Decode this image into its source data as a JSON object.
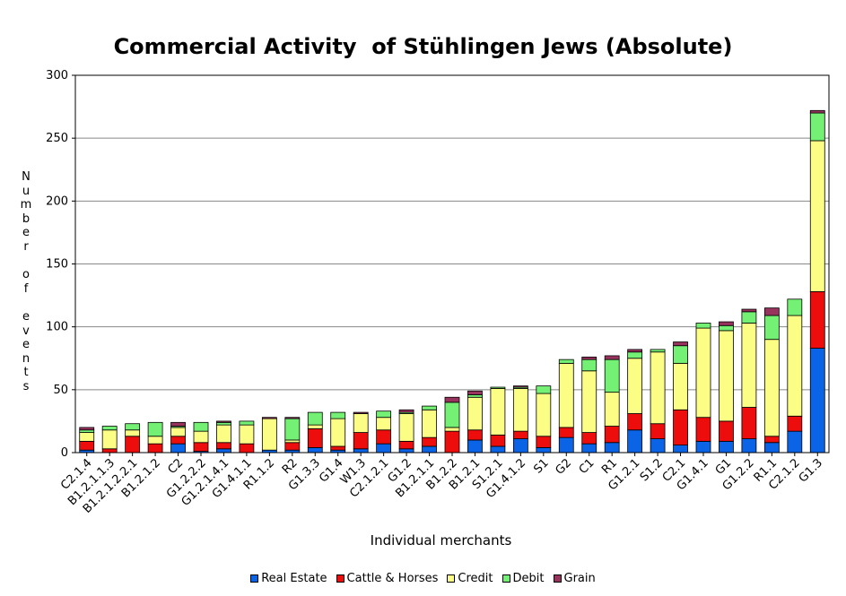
{
  "chart_data": {
    "type": "bar",
    "stacked": true,
    "title": "Commercial Activity  of Stühlingen Jews (Absolute)",
    "xlabel": "Individual merchants",
    "ylabel": "Number of events",
    "ylim": [
      0,
      300
    ],
    "yticks": [
      0,
      50,
      100,
      150,
      200,
      250,
      300
    ],
    "grid": true,
    "legend_position": "bottom",
    "categories": [
      "C2.1.4",
      "B1.2.1.1.3",
      "B1.2.1.2.2.1",
      "B1.2.1.2",
      "C2",
      "G1.2.2.2",
      "G1.2.1.4.1",
      "G1.4.1.1",
      "R1.1.2",
      "R2",
      "G1.3.3",
      "G1.4",
      "W1.3",
      "C2.1.2.1",
      "G1.2",
      "B1.2.1.1",
      "B1.2.2",
      "B1.2.1",
      "S1.2.1",
      "G1.4.1.2",
      "S1",
      "G2",
      "C1",
      "R1",
      "G1.2.1",
      "S1.2",
      "C2.1",
      "G1.4.1",
      "G1",
      "G1.2.2",
      "R1.1",
      "C2.1.2",
      "G1.3"
    ],
    "series": [
      {
        "name": "Real Estate",
        "color": "#0b63e6",
        "values": [
          2,
          0,
          0,
          0,
          7,
          1,
          3,
          0,
          2,
          2,
          4,
          2,
          3,
          7,
          3,
          5,
          0,
          10,
          5,
          11,
          4,
          12,
          7,
          8,
          18,
          11,
          6,
          9,
          9,
          11,
          8,
          17,
          83
        ]
      },
      {
        "name": "Cattle & Horses",
        "color": "#ee0d0d",
        "values": [
          7,
          3,
          13,
          7,
          6,
          7,
          5,
          7,
          0,
          6,
          15,
          3,
          13,
          11,
          6,
          7,
          17,
          8,
          9,
          6,
          9,
          8,
          9,
          13,
          13,
          12,
          28,
          19,
          16,
          25,
          5,
          12,
          45
        ]
      },
      {
        "name": "Credit",
        "color": "#fbfd84",
        "values": [
          7,
          15,
          5,
          6,
          7,
          9,
          14,
          15,
          25,
          2,
          3,
          22,
          15,
          10,
          22,
          22,
          3,
          26,
          37,
          34,
          34,
          51,
          49,
          27,
          44,
          57,
          37,
          71,
          72,
          67,
          77,
          80,
          120
        ]
      },
      {
        "name": "Debit",
        "color": "#74f174",
        "values": [
          2,
          3,
          5,
          11,
          1,
          7,
          2,
          3,
          0,
          17,
          10,
          5,
          0,
          5,
          1,
          3,
          20,
          2,
          1,
          1,
          6,
          3,
          9,
          26,
          5,
          2,
          14,
          4,
          4,
          9,
          19,
          13,
          22
        ]
      },
      {
        "name": "Grain",
        "color": "#98335e",
        "values": [
          2,
          0,
          0,
          0,
          3,
          0,
          1,
          0,
          1,
          1,
          0,
          0,
          1,
          0,
          2,
          0,
          4,
          3,
          0,
          1,
          0,
          0,
          2,
          3,
          2,
          0,
          3,
          0,
          3,
          2,
          6,
          0,
          2
        ]
      }
    ]
  }
}
